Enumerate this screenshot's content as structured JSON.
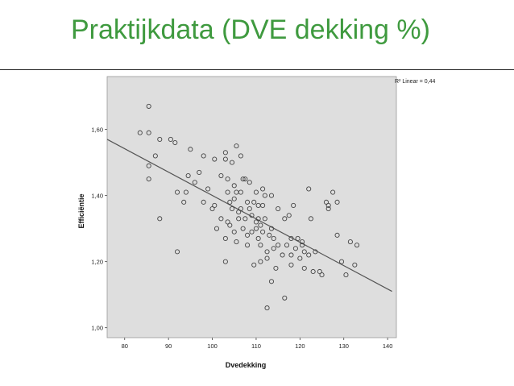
{
  "slide": {
    "title": "Praktijkdata (DVE dekking %)"
  },
  "chart_data": {
    "type": "scatter",
    "title": "",
    "xlabel": "Dvedekking",
    "ylabel": "Efficiëntie",
    "xlim": [
      76,
      142
    ],
    "ylim": [
      0.97,
      1.76
    ],
    "x_ticks": [
      "80",
      "90",
      "100",
      "110",
      "120",
      "130",
      "140"
    ],
    "y_ticks": [
      "1,00",
      "1,20",
      "1,40",
      "1,60"
    ],
    "grid": false,
    "background": "#dedede",
    "point_color": "#444444",
    "line_color": "#555555",
    "fit_label": "R² Linear = 0,44",
    "fit_line": {
      "x": [
        76,
        141
      ],
      "y": [
        1.57,
        1.11
      ]
    },
    "points": [
      [
        85.5,
        1.67
      ],
      [
        83.5,
        1.59
      ],
      [
        85.5,
        1.59
      ],
      [
        87.0,
        1.52
      ],
      [
        85.5,
        1.49
      ],
      [
        88.0,
        1.57
      ],
      [
        85.5,
        1.45
      ],
      [
        88.0,
        1.33
      ],
      [
        90.5,
        1.57
      ],
      [
        91.5,
        1.56
      ],
      [
        92.0,
        1.41
      ],
      [
        92.0,
        1.23
      ],
      [
        94.0,
        1.41
      ],
      [
        93.5,
        1.38
      ],
      [
        95.0,
        1.54
      ],
      [
        94.5,
        1.46
      ],
      [
        96.0,
        1.44
      ],
      [
        97.0,
        1.47
      ],
      [
        98.0,
        1.52
      ],
      [
        98.0,
        1.38
      ],
      [
        99.0,
        1.42
      ],
      [
        100.0,
        1.36
      ],
      [
        100.5,
        1.51
      ],
      [
        100.5,
        1.37
      ],
      [
        101.0,
        1.3
      ],
      [
        102.0,
        1.46
      ],
      [
        102.0,
        1.33
      ],
      [
        103.0,
        1.53
      ],
      [
        103.0,
        1.51
      ],
      [
        103.0,
        1.27
      ],
      [
        103.0,
        1.2
      ],
      [
        103.5,
        1.45
      ],
      [
        103.5,
        1.41
      ],
      [
        103.5,
        1.32
      ],
      [
        104.0,
        1.38
      ],
      [
        104.0,
        1.31
      ],
      [
        104.5,
        1.5
      ],
      [
        104.5,
        1.36
      ],
      [
        105.0,
        1.43
      ],
      [
        105.0,
        1.39
      ],
      [
        105.0,
        1.29
      ],
      [
        105.5,
        1.55
      ],
      [
        105.5,
        1.41
      ],
      [
        105.5,
        1.26
      ],
      [
        106.0,
        1.35
      ],
      [
        106.0,
        1.33
      ],
      [
        106.5,
        1.52
      ],
      [
        106.5,
        1.41
      ],
      [
        106.5,
        1.36
      ],
      [
        107.0,
        1.45
      ],
      [
        107.0,
        1.3
      ],
      [
        107.5,
        1.45
      ],
      [
        107.5,
        1.33
      ],
      [
        108.0,
        1.38
      ],
      [
        108.0,
        1.28
      ],
      [
        108.0,
        1.25
      ],
      [
        108.5,
        1.44
      ],
      [
        108.5,
        1.36
      ],
      [
        109.0,
        1.34
      ],
      [
        109.0,
        1.29
      ],
      [
        109.5,
        1.38
      ],
      [
        109.5,
        1.19
      ],
      [
        110.0,
        1.41
      ],
      [
        110.0,
        1.32
      ],
      [
        110.0,
        1.3
      ],
      [
        110.5,
        1.37
      ],
      [
        110.5,
        1.33
      ],
      [
        110.5,
        1.27
      ],
      [
        111.0,
        1.31
      ],
      [
        111.0,
        1.25
      ],
      [
        111.0,
        1.2
      ],
      [
        111.5,
        1.42
      ],
      [
        111.5,
        1.37
      ],
      [
        111.5,
        1.29
      ],
      [
        112.0,
        1.4
      ],
      [
        112.0,
        1.33
      ],
      [
        112.5,
        1.23
      ],
      [
        112.5,
        1.21
      ],
      [
        112.5,
        1.06
      ],
      [
        113.0,
        1.28
      ],
      [
        113.5,
        1.4
      ],
      [
        113.5,
        1.3
      ],
      [
        113.5,
        1.14
      ],
      [
        114.0,
        1.27
      ],
      [
        114.0,
        1.24
      ],
      [
        114.5,
        1.18
      ],
      [
        115.0,
        1.36
      ],
      [
        115.0,
        1.25
      ],
      [
        116.0,
        1.22
      ],
      [
        116.5,
        1.33
      ],
      [
        116.5,
        1.09
      ],
      [
        117.0,
        1.25
      ],
      [
        117.5,
        1.34
      ],
      [
        118.0,
        1.27
      ],
      [
        118.0,
        1.22
      ],
      [
        118.0,
        1.19
      ],
      [
        118.5,
        1.37
      ],
      [
        119.0,
        1.24
      ],
      [
        119.5,
        1.27
      ],
      [
        120.0,
        1.21
      ],
      [
        120.5,
        1.26
      ],
      [
        120.5,
        1.25
      ],
      [
        121.0,
        1.23
      ],
      [
        121.0,
        1.18
      ],
      [
        122.0,
        1.42
      ],
      [
        122.0,
        1.22
      ],
      [
        122.5,
        1.33
      ],
      [
        123.0,
        1.17
      ],
      [
        123.5,
        1.23
      ],
      [
        124.5,
        1.17
      ],
      [
        125.0,
        1.16
      ],
      [
        126.0,
        1.38
      ],
      [
        126.5,
        1.36
      ],
      [
        126.5,
        1.37
      ],
      [
        127.5,
        1.41
      ],
      [
        128.5,
        1.38
      ],
      [
        128.5,
        1.28
      ],
      [
        129.5,
        1.2
      ],
      [
        130.5,
        1.16
      ],
      [
        131.5,
        1.26
      ],
      [
        132.5,
        1.19
      ],
      [
        133.0,
        1.25
      ]
    ]
  }
}
